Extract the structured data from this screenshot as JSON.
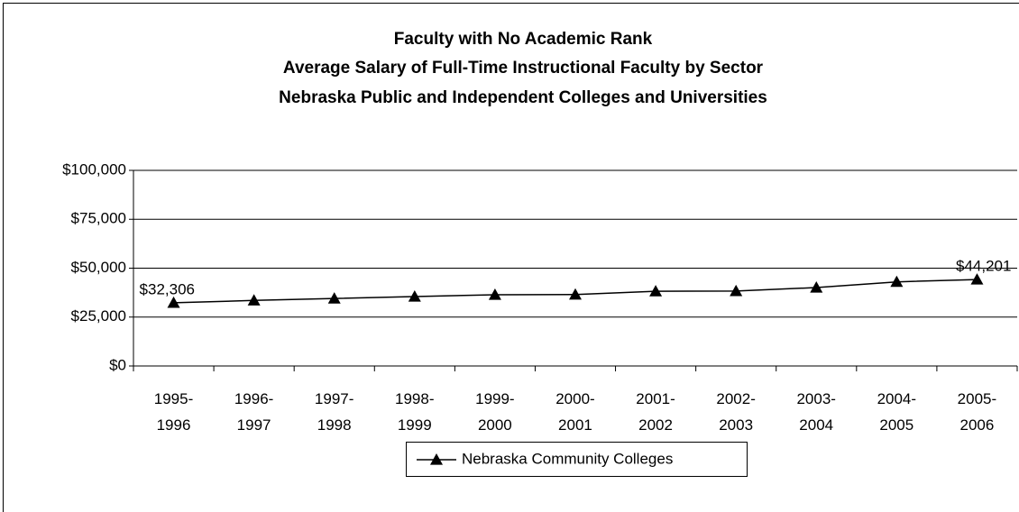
{
  "chart_data": {
    "type": "line",
    "title": "Faculty with No Academic Rank",
    "subtitle": [
      "Average Salary of Full-Time Instructional Faculty by Sector",
      "Nebraska Public and Independent Colleges and Universities"
    ],
    "categories": [
      "1995-\n1996",
      "1996-\n1997",
      "1997-\n1998",
      "1998-\n1999",
      "1999-\n2000",
      "2000-\n2001",
      "2001-\n2002",
      "2002-\n2003",
      "2003-\n2004",
      "2004-\n2005",
      "2005-\n2006"
    ],
    "series": [
      {
        "name": "Nebraska Community Colleges",
        "color": "#000000",
        "values": [
          32306,
          33500,
          34500,
          35500,
          36400,
          36500,
          38200,
          38300,
          40100,
          43000,
          44201
        ],
        "value_labels": [
          "$32,306",
          null,
          null,
          null,
          null,
          null,
          null,
          null,
          null,
          null,
          "$44,201"
        ]
      }
    ],
    "ylim": [
      0,
      100000
    ],
    "yticks": [
      {
        "value": 0,
        "label": "$0"
      },
      {
        "value": 25000,
        "label": "$25,000"
      },
      {
        "value": 50000,
        "label": "$50,000"
      },
      {
        "value": 75000,
        "label": "$75,000"
      },
      {
        "value": 100000,
        "label": "$100,000"
      }
    ],
    "grid": true,
    "legend": "bottom"
  }
}
